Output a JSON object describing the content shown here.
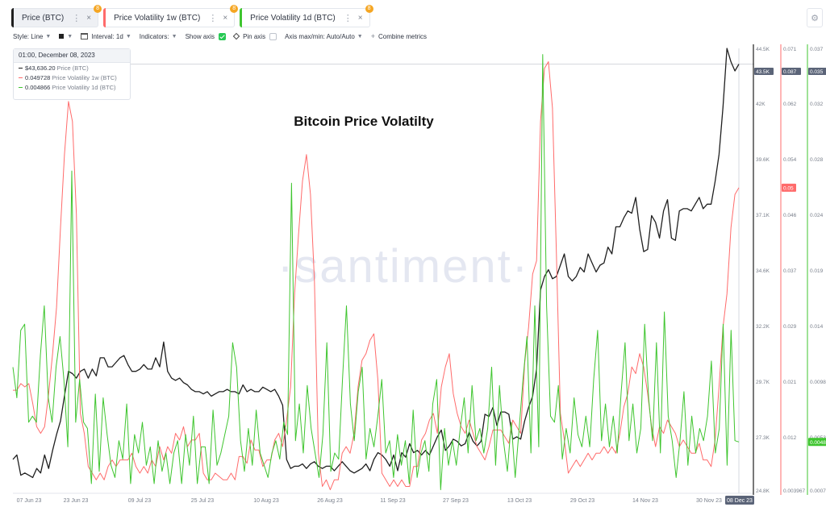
{
  "tabs": [
    {
      "label": "Price (BTC)",
      "color": "#1f1f1f",
      "badge": "8",
      "kebab": "⋮",
      "close": "×"
    },
    {
      "label": "Price Volatility 1w (BTC)",
      "color": "#ff6b6b",
      "badge": "8",
      "kebab": "⋮",
      "close": "×"
    },
    {
      "label": "Price Volatility 1d (BTC)",
      "color": "#3fc52f",
      "badge": "8",
      "kebab": "⋮",
      "close": "×"
    }
  ],
  "toolbar": {
    "style_label": "Style: Line",
    "interval_label": "Interval: 1d",
    "indicators_label": "Indicators:",
    "show_axis_label": "Show axis",
    "pin_axis_label": "Pin axis",
    "axis_max_min_label": "Axis max/min: Auto/Auto",
    "combine_label": "Combine metrics"
  },
  "settings_icon": "⚙",
  "tooltip": {
    "date": "01:00, December 08, 2023",
    "rows": [
      {
        "value": "$43,636.20",
        "name": "Price (BTC)",
        "color": "#1f1f1f"
      },
      {
        "value": "0.049728",
        "name": "Price Volatility 1w (BTC)",
        "color": "#ff6b6b"
      },
      {
        "value": "0.004866",
        "name": "Price Volatility 1d (BTC)",
        "color": "#3fc52f"
      }
    ]
  },
  "watermark": "·santiment·",
  "chart_data": {
    "type": "line",
    "title": "Bitcoin Price Volatilty",
    "x_ticks": [
      "07 Jun 23",
      "23 Jun 23",
      "09 Jul 23",
      "25 Jul 23",
      "10 Aug 23",
      "26 Aug 23",
      "11 Sep 23",
      "27 Sep 23",
      "13 Oct 23",
      "29 Oct 23",
      "14 Nov 23",
      "30 Nov 23"
    ],
    "x_end_label": "08 Dec 23",
    "axes": [
      {
        "series": "Price (BTC)",
        "ticks": [
          "44.5K",
          "42K",
          "39.6K",
          "37.1K",
          "34.6K",
          "32.2K",
          "29.7K",
          "27.3K",
          "24.8K"
        ],
        "range": [
          24800,
          44500
        ],
        "current": "43.5K",
        "color": "#1f1f1f"
      },
      {
        "series": "Price Volatility 1w (BTC)",
        "ticks": [
          "0.071",
          "0.062",
          "0.054",
          "0.046",
          "0.037",
          "0.029",
          "0.021",
          "0.012",
          "0.003967"
        ],
        "range": [
          0.003967,
          0.071
        ],
        "current": "0.087",
        "marker": "0.05",
        "color": "#ff6b6b"
      },
      {
        "series": "Price Volatility 1d (BTC)",
        "ticks": [
          "0.037",
          "0.032",
          "0.028",
          "0.024",
          "0.019",
          "0.014",
          "0.0098",
          "0.0053",
          "0.00071"
        ],
        "range": [
          0.00071,
          0.037
        ],
        "current": "0.035",
        "marker": "0.00486",
        "color": "#3fc52f"
      }
    ],
    "series": [
      {
        "name": "Price (BTC)",
        "color": "#1f1f1f",
        "values": [
          26300,
          26500,
          25600,
          25700,
          25600,
          25500,
          25900,
          25700,
          26500,
          25900,
          26700,
          27400,
          28000,
          29100,
          30200,
          30100,
          29900,
          30200,
          30300,
          29900,
          30300,
          30000,
          30800,
          30800,
          30400,
          30400,
          30600,
          30800,
          30900,
          30500,
          30200,
          30200,
          30300,
          30500,
          30300,
          30300,
          30800,
          30400,
          31500,
          30200,
          29900,
          29800,
          29900,
          29700,
          29600,
          29400,
          29300,
          29300,
          29200,
          29300,
          29100,
          29200,
          29300,
          29300,
          29400,
          29300,
          29300,
          29200,
          29600,
          29300,
          29400,
          29300,
          29300,
          29500,
          29400,
          29300,
          29400,
          29100,
          28700,
          26300,
          25900,
          26000,
          26000,
          26100,
          25900,
          26100,
          26200,
          26000,
          25900,
          26000,
          26000,
          25800,
          26000,
          26200,
          26000,
          25800,
          25700,
          25800,
          25900,
          26100,
          25800,
          26300,
          26600,
          26500,
          26300,
          26000,
          26500,
          25800,
          26600,
          26400,
          27000,
          26600,
          26700,
          26500,
          26700,
          26500,
          26900,
          27300,
          27600,
          26700,
          26900,
          27200,
          27100,
          26900,
          27000,
          27500,
          27100,
          26900,
          27100,
          28300,
          28200,
          28600,
          27800,
          28400,
          28400,
          28300,
          27200,
          27300,
          27200,
          28000,
          28600,
          29100,
          30300,
          33800,
          34400,
          34700,
          34300,
          34400,
          34900,
          35400,
          34400,
          34200,
          34400,
          34800,
          34600,
          35400,
          35000,
          34600,
          34900,
          35000,
          35700,
          35400,
          36600,
          36600,
          37000,
          37300,
          37200,
          37900,
          36500,
          35500,
          35600,
          37100,
          36800,
          36100,
          37300,
          37800,
          36100,
          36000,
          37300,
          37400,
          37400,
          37300,
          37600,
          37900,
          37400,
          37600,
          37600,
          38600,
          39800,
          41900,
          44500,
          43900,
          43500,
          43800
        ]
      },
      {
        "name": "Price Volatility 1w (BTC)",
        "color": "#ff6b6b",
        "values": [
          0.0195,
          0.0195,
          0.0205,
          0.02,
          0.0205,
          0.0175,
          0.014,
          0.013,
          0.014,
          0.019,
          0.025,
          0.032,
          0.044,
          0.055,
          0.063,
          0.06,
          0.046,
          0.016,
          0.013,
          0.008,
          0.007,
          0.006,
          0.007,
          0.006,
          0.008,
          0.009,
          0.008,
          0.009,
          0.009,
          0.009,
          0.01,
          0.008,
          0.007,
          0.008,
          0.007,
          0.009,
          0.008,
          0.011,
          0.009,
          0.011,
          0.01,
          0.013,
          0.012,
          0.014,
          0.011,
          0.012,
          0.012,
          0.013,
          0.007,
          0.006,
          0.006,
          0.007,
          0.0065,
          0.006,
          0.006,
          0.007,
          0.006,
          0.0095,
          0.0095,
          0.0085,
          0.012,
          0.0105,
          0.0105,
          0.008,
          0.009,
          0.009,
          0.012,
          0.013,
          0.011,
          0.015,
          0.02,
          0.034,
          0.043,
          0.051,
          0.055,
          0.049,
          0.036,
          0.01,
          0.005,
          0.006,
          0.0045,
          0.006,
          0.006,
          0.01,
          0.011,
          0.01,
          0.013,
          0.02,
          0.024,
          0.025,
          0.027,
          0.028,
          0.021,
          0.007,
          0.006,
          0.005,
          0.006,
          0.005,
          0.006,
          0.005,
          0.005,
          0.008,
          0.008,
          0.012,
          0.013,
          0.015,
          0.016,
          0.013,
          0.02,
          0.023,
          0.025,
          0.019,
          0.016,
          0.014,
          0.013,
          0.015,
          0.013,
          0.011,
          0.01,
          0.009,
          0.011,
          0.0135,
          0.0135,
          0.0135,
          0.0125,
          0.0115,
          0.015,
          0.014,
          0.013,
          0.0235,
          0.029,
          0.037,
          0.039,
          0.06,
          0.068,
          0.069,
          0.062,
          0.04,
          0.016,
          0.012,
          0.007,
          0.008,
          0.009,
          0.008,
          0.009,
          0.01,
          0.009,
          0.01,
          0.01,
          0.011,
          0.01,
          0.011,
          0.01,
          0.013,
          0.017,
          0.019,
          0.023,
          0.022,
          0.025,
          0.023,
          0.019,
          0.014,
          0.011,
          0.014,
          0.013,
          0.015,
          0.014,
          0.013,
          0.011,
          0.012,
          0.011,
          0.01,
          0.01,
          0.0115,
          0.009,
          0.009,
          0.008,
          0.012,
          0.02,
          0.029,
          0.034,
          0.044,
          0.049,
          0.05
        ]
      },
      {
        "name": "Price Volatility 1d (BTC)",
        "color": "#3fc52f",
        "values": [
          0.011,
          0.0085,
          0.014,
          0.0145,
          0.0065,
          0.007,
          0.0065,
          0.012,
          0.016,
          0.0085,
          0.0065,
          0.011,
          0.0135,
          0.01,
          0.0045,
          0.027,
          0.0065,
          0.01,
          0.0065,
          0.006,
          0.0015,
          0.0088,
          0.0025,
          0.0085,
          0.0055,
          0.003,
          0.002,
          0.005,
          0.0035,
          0.008,
          0.0015,
          0.0055,
          0.004,
          0.0065,
          0.003,
          0.0045,
          0.0015,
          0.005,
          0.0025,
          0.004,
          0.0015,
          0.004,
          0.005,
          0.0015,
          0.0055,
          0.003,
          0.007,
          0.0015,
          0.0045,
          0.0045,
          0.0015,
          0.0075,
          0.003,
          0.004,
          0.0055,
          0.007,
          0.013,
          0.011,
          0.005,
          0.0025,
          0.006,
          0.003,
          0.0075,
          0.004,
          0.003,
          0.002,
          0.004,
          0.005,
          0.0035,
          0.0065,
          0.0055,
          0.026,
          0.005,
          0.008,
          0.004,
          0.0095,
          0.006,
          0.004,
          0.002,
          0.0055,
          0.013,
          0.0025,
          0.004,
          0.0035,
          0.01,
          0.016,
          0.008,
          0.005,
          0.009,
          0.011,
          0.0035,
          0.006,
          0.0045,
          0.007,
          0.01,
          0.004,
          0.005,
          0.002,
          0.0055,
          0.003,
          0.005,
          0.0015,
          0.0075,
          0.002,
          0.004,
          0.005,
          0.0025,
          0.008,
          0.01,
          0.001,
          0.006,
          0.003,
          0.005,
          0.003,
          0.006,
          0.0085,
          0.004,
          0.0095,
          0.005,
          0.006,
          0.004,
          0.006,
          0.011,
          0.003,
          0.0095,
          0.005,
          0.0025,
          0.0065,
          0.002,
          0.006,
          0.01,
          0.0135,
          0.004,
          0.016,
          0.0045,
          0.0365,
          0.016,
          0.007,
          0.0065,
          0.0095,
          0.0035,
          0.006,
          0.004,
          0.0085,
          0.0055,
          0.0045,
          0.007,
          0.0045,
          0.01,
          0.014,
          0.005,
          0.008,
          0.0045,
          0.007,
          0.004,
          0.009,
          0.013,
          0.005,
          0.008,
          0.004,
          0.006,
          0.0145,
          0.0085,
          0.005,
          0.013,
          0.004,
          0.0155,
          0.007,
          0.005,
          0.002,
          0.005,
          0.009,
          0.003,
          0.007,
          0.004,
          0.006,
          0.005,
          0.007,
          0.0115,
          0.004,
          0.006,
          0.0145,
          0.003,
          0.014,
          0.005,
          0.0049
        ]
      }
    ],
    "legend": "top-left",
    "grid": false
  }
}
